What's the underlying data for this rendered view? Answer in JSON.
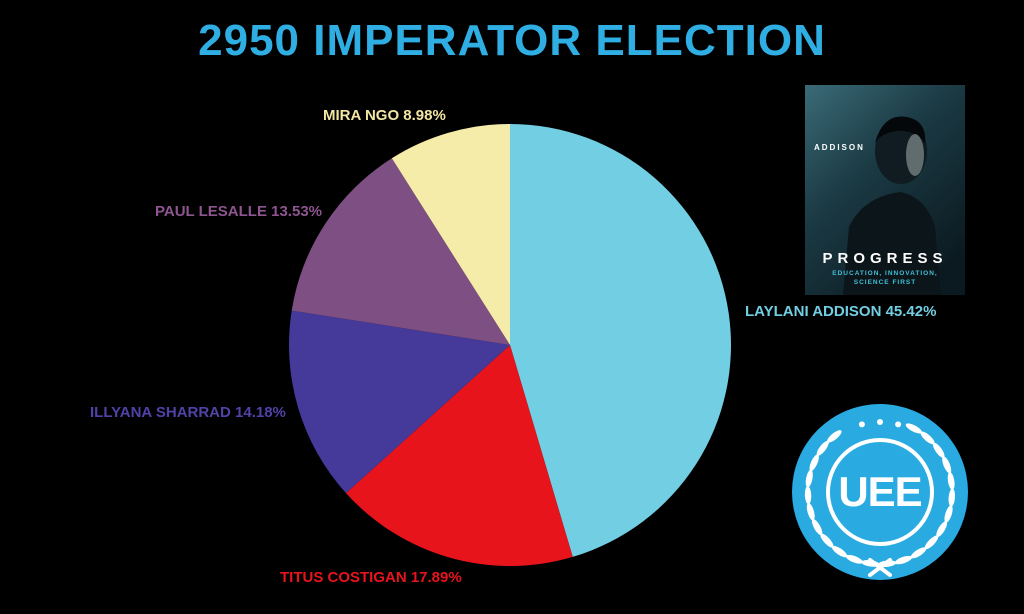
{
  "title": "2950 IMPERATOR ELECTION",
  "title_color": "#2FAEE3",
  "background_color": "#000000",
  "chart_data": {
    "type": "pie",
    "title": "2950 IMPERATOR ELECTION",
    "start_angle_deg": 0,
    "direction": "clockwise",
    "legend_position": "labels-around-pie",
    "slices": [
      {
        "id": "addison",
        "label": "LAYLANI ADDISON",
        "value": 45.42,
        "display": "LAYLANI ADDISON 45.42%",
        "color": "#72CEE3",
        "label_color": "#72CEE3"
      },
      {
        "id": "costigan",
        "label": "TITUS COSTIGAN",
        "value": 17.89,
        "display": "TITUS COSTIGAN 17.89%",
        "color": "#E8141C",
        "label_color": "#E8141C"
      },
      {
        "id": "sharrad",
        "label": "ILLYANA SHARRAD",
        "value": 14.18,
        "display": "ILLYANA SHARRAD 14.18%",
        "color": "#45399A",
        "label_color": "#5142A8"
      },
      {
        "id": "lesalle",
        "label": "PAUL LESALLE",
        "value": 13.53,
        "display": "PAUL LESALLE 13.53%",
        "color": "#7D4F82",
        "label_color": "#8E5590"
      },
      {
        "id": "ngo",
        "label": "MIRA NGO",
        "value": 8.98,
        "display": "MIRA NGO 8.98%",
        "color": "#F6ECA9",
        "label_color": "#F2E6A2"
      }
    ]
  },
  "poster": {
    "name_tag": "ADDISON",
    "slogan": "PROGRESS",
    "subtitle": "EDUCATION, INNOVATION, SCIENCE FIRST"
  },
  "uee_logo": {
    "text": "UEE",
    "color": "#29ABE2"
  }
}
